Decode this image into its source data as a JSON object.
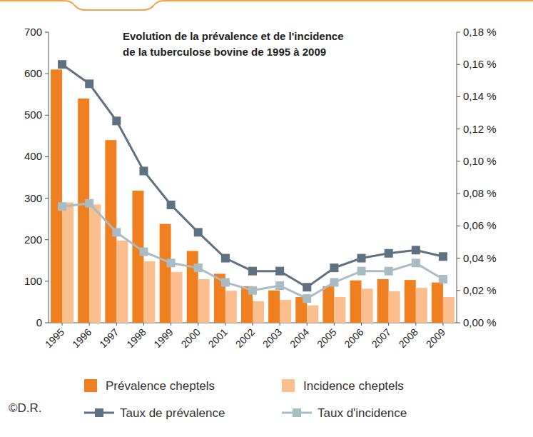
{
  "chart_data": {
    "type": "bar",
    "title": "Evolution de la prévalence et de l'incidence de la tuberculose bovine de 1995 à 2009",
    "annotation": "©D.R.",
    "categories": [
      "1995",
      "1996",
      "1997",
      "1998",
      "1999",
      "2000",
      "2001",
      "2002",
      "2003",
      "2004",
      "2005",
      "2006",
      "2007",
      "2008",
      "2009"
    ],
    "series": [
      {
        "name": "Prévalence cheptels",
        "type": "bar",
        "color": "#f07f1f",
        "values": [
          610,
          540,
          440,
          318,
          238,
          173,
          118,
          88,
          78,
          62,
          88,
          102,
          105,
          103,
          97
        ]
      },
      {
        "name": "Incidence cheptels",
        "type": "bar",
        "color": "#fbbf8f",
        "values": [
          290,
          285,
          198,
          148,
          122,
          105,
          77,
          52,
          55,
          42,
          62,
          82,
          76,
          84,
          62
        ]
      },
      {
        "name": "Taux de prévalence",
        "type": "line",
        "axis": "y2",
        "color": "#5f7180",
        "marker": "square",
        "line_style": "solid",
        "values": [
          0.16,
          0.148,
          0.125,
          0.094,
          0.073,
          0.056,
          0.04,
          0.032,
          0.032,
          0.022,
          0.034,
          0.04,
          0.043,
          0.045,
          0.041
        ]
      },
      {
        "name": "Taux d'incidence",
        "type": "line",
        "axis": "y2",
        "color": "#a9bcc4",
        "marker": "square",
        "line_style": "solid",
        "values": [
          0.072,
          0.074,
          0.056,
          0.044,
          0.037,
          0.034,
          0.025,
          0.02,
          0.023,
          0.015,
          0.025,
          0.032,
          0.032,
          0.037,
          0.027
        ]
      }
    ],
    "ylim": [
      0,
      700
    ],
    "yticks": [
      0,
      100,
      200,
      300,
      400,
      500,
      600,
      700
    ],
    "y2lim": [
      0,
      0.18
    ],
    "y2ticks": [
      {
        "value": 0,
        "label": "0,00 %"
      },
      {
        "value": 0.02,
        "label": "0,02 %"
      },
      {
        "value": 0.04,
        "label": "0,04 %"
      },
      {
        "value": 0.06,
        "label": "0,06 %"
      },
      {
        "value": 0.08,
        "label": "0,08 %"
      },
      {
        "value": 0.1,
        "label": "0,10 %"
      },
      {
        "value": 0.12,
        "label": "0,12 %"
      },
      {
        "value": 0.14,
        "label": "0,14 %"
      },
      {
        "value": 0.16,
        "label": "0,16 %"
      },
      {
        "value": 0.18,
        "label": "0,18 %"
      }
    ],
    "grid": false,
    "legend": "bottom"
  }
}
